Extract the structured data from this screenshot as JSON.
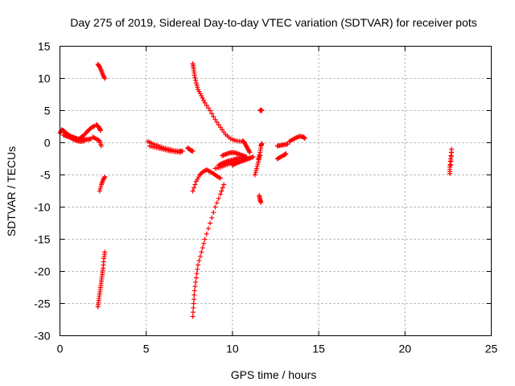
{
  "chart_data": {
    "type": "scatter",
    "title": "Day 275 of 2019, Sidereal Day-to-day VTEC variation (SDTVAR) for receiver pots",
    "xlabel": "GPS time / hours",
    "ylabel": "SDTVAR / TECUs",
    "xlim": [
      0,
      25
    ],
    "ylim": [
      -30,
      15
    ],
    "x_ticks": [
      0,
      5,
      10,
      15,
      20,
      25
    ],
    "y_ticks": [
      15,
      10,
      5,
      0,
      -5,
      -10,
      -15,
      -20,
      -25,
      -30
    ],
    "grid": true,
    "marker": "plus",
    "color": "#ff0000",
    "segments": [
      {
        "x": [
          0.0,
          0.1,
          0.2,
          0.3,
          0.4,
          0.5,
          0.6,
          0.7,
          0.8,
          0.9,
          1.0,
          1.2,
          1.4,
          1.6,
          1.8
        ],
        "y": [
          1.5,
          2.0,
          1.9,
          1.6,
          1.4,
          1.2,
          1.0,
          0.9,
          0.8,
          0.7,
          0.6,
          0.6,
          0.5,
          0.5,
          0.6
        ]
      },
      {
        "x": [
          0.2,
          0.4,
          0.6,
          0.8,
          1.0,
          1.2,
          1.4
        ],
        "y": [
          1.2,
          1.0,
          0.8,
          0.5,
          0.3,
          0.2,
          0.3
        ]
      },
      {
        "x": [
          1.2,
          1.4,
          1.6,
          1.8,
          2.0
        ],
        "y": [
          0.8,
          1.2,
          1.8,
          2.3,
          2.6
        ]
      },
      {
        "x": [
          2.1,
          2.2,
          2.3,
          2.35
        ],
        "y": [
          2.8,
          2.6,
          2.2,
          1.9
        ]
      },
      {
        "x": [
          1.9,
          2.1,
          2.3,
          2.4
        ],
        "y": [
          0.9,
          0.6,
          0.3,
          -0.5
        ]
      },
      {
        "x": [
          2.2,
          2.3,
          2.4,
          2.5,
          2.6
        ],
        "y": [
          12.2,
          11.8,
          11.2,
          10.5,
          10.0
        ]
      },
      {
        "x": [
          2.3,
          2.4,
          2.5,
          2.6
        ],
        "y": [
          -7.5,
          -6.5,
          -5.8,
          -5.3
        ]
      },
      {
        "x": [
          2.2,
          2.25,
          2.3,
          2.35,
          2.4,
          2.45,
          2.5,
          2.55,
          2.6
        ],
        "y": [
          -25.5,
          -24.5,
          -23.5,
          -22.5,
          -21.5,
          -20.5,
          -19.5,
          -18.0,
          -17.0
        ]
      },
      {
        "x": [
          5.1,
          5.4,
          5.7,
          6.0,
          6.3,
          6.6,
          6.9,
          7.1
        ],
        "y": [
          0.2,
          -0.2,
          -0.5,
          -0.8,
          -1.0,
          -1.2,
          -1.3,
          -1.3
        ]
      },
      {
        "x": [
          5.2,
          5.5,
          5.8,
          6.1,
          6.4,
          6.7,
          7.0
        ],
        "y": [
          -0.5,
          -0.7,
          -0.9,
          -1.1,
          -1.3,
          -1.4,
          -1.5
        ]
      },
      {
        "x": [
          7.4,
          7.5,
          7.6,
          7.7
        ],
        "y": [
          -0.8,
          -1.0,
          -1.2,
          -1.3
        ]
      },
      {
        "x": [
          7.7,
          7.75,
          7.8,
          7.9,
          8.0,
          8.2,
          8.4,
          8.7,
          9.0,
          9.3,
          9.6,
          9.9,
          10.2,
          10.5
        ],
        "y": [
          12.3,
          11.5,
          10.5,
          9.3,
          8.3,
          7.3,
          6.2,
          5.0,
          3.6,
          2.4,
          1.3,
          0.6,
          0.3,
          0.2
        ]
      },
      {
        "x": [
          7.7,
          7.75,
          7.8,
          7.9,
          8.0,
          8.2,
          8.4,
          8.7,
          9.0,
          9.3,
          9.5
        ],
        "y": [
          -27.0,
          -25.0,
          -23.0,
          -21.0,
          -19.0,
          -17.0,
          -15.0,
          -12.5,
          -10.0,
          -8.0,
          -6.5
        ]
      },
      {
        "x": [
          7.7,
          7.9,
          8.1,
          8.3,
          8.5,
          8.7,
          8.9,
          9.1,
          9.3
        ],
        "y": [
          -7.5,
          -6.0,
          -5.0,
          -4.5,
          -4.2,
          -4.5,
          -4.8,
          -5.2,
          -5.5
        ]
      },
      {
        "x": [
          9.2,
          9.4,
          9.6,
          9.8,
          10.0,
          10.2,
          10.4,
          10.6,
          10.8
        ],
        "y": [
          -3.5,
          -3.2,
          -3.0,
          -2.8,
          -2.7,
          -2.5,
          -2.4,
          -2.3,
          -2.2
        ]
      },
      {
        "x": [
          9.4,
          9.6,
          9.8,
          10.0,
          10.2,
          10.4,
          10.6,
          10.8
        ],
        "y": [
          -2.0,
          -1.8,
          -1.6,
          -1.5,
          -1.6,
          -1.8,
          -2.0,
          -2.2
        ]
      },
      {
        "x": [
          10.0,
          10.2,
          10.4,
          10.6,
          10.8,
          11.0,
          11.2
        ],
        "y": [
          -3.5,
          -3.2,
          -3.0,
          -2.8,
          -2.6,
          -2.4,
          -2.2
        ]
      },
      {
        "x": [
          9.0,
          9.3,
          9.6,
          9.9,
          10.2,
          10.5,
          10.8,
          11.0
        ],
        "y": [
          -4.0,
          -3.8,
          -3.5,
          -3.2,
          -3.0,
          -2.8,
          -2.6,
          -2.4
        ]
      },
      {
        "x": [
          10.6,
          10.7,
          10.8,
          10.9,
          11.0
        ],
        "y": [
          0.3,
          0.0,
          -0.5,
          -1.0,
          -1.5
        ]
      },
      {
        "x": [
          11.3,
          11.4,
          11.5,
          11.6
        ],
        "y": [
          -5.0,
          -4.0,
          -3.0,
          -2.0
        ]
      },
      {
        "x": [
          11.5,
          11.6,
          11.65,
          11.7
        ],
        "y": [
          -2.5,
          -1.5,
          -0.5,
          -0.1
        ]
      },
      {
        "x": [
          11.6,
          11.65,
          11.7
        ],
        "y": [
          5.0,
          5.1,
          5.0
        ]
      },
      {
        "x": [
          11.55,
          11.6,
          11.65
        ],
        "y": [
          -8.2,
          -8.8,
          -9.3
        ]
      },
      {
        "x": [
          12.6,
          12.8,
          13.0,
          13.2
        ],
        "y": [
          -0.5,
          -0.4,
          -0.3,
          -0.2
        ]
      },
      {
        "x": [
          12.6,
          12.8,
          13.0,
          13.1
        ],
        "y": [
          -2.5,
          -2.2,
          -1.9,
          -1.7
        ]
      },
      {
        "x": [
          13.3,
          13.5,
          13.7,
          13.9,
          14.1,
          14.2
        ],
        "y": [
          0.2,
          0.5,
          0.8,
          1.0,
          0.9,
          0.7
        ]
      },
      {
        "x": [
          22.6,
          22.6,
          22.65,
          22.7
        ],
        "y": [
          -4.8,
          -3.8,
          -2.5,
          -1.0
        ]
      },
      {
        "x": [
          22.65,
          22.7
        ],
        "y": [
          -3.5,
          -1.5
        ]
      }
    ]
  }
}
